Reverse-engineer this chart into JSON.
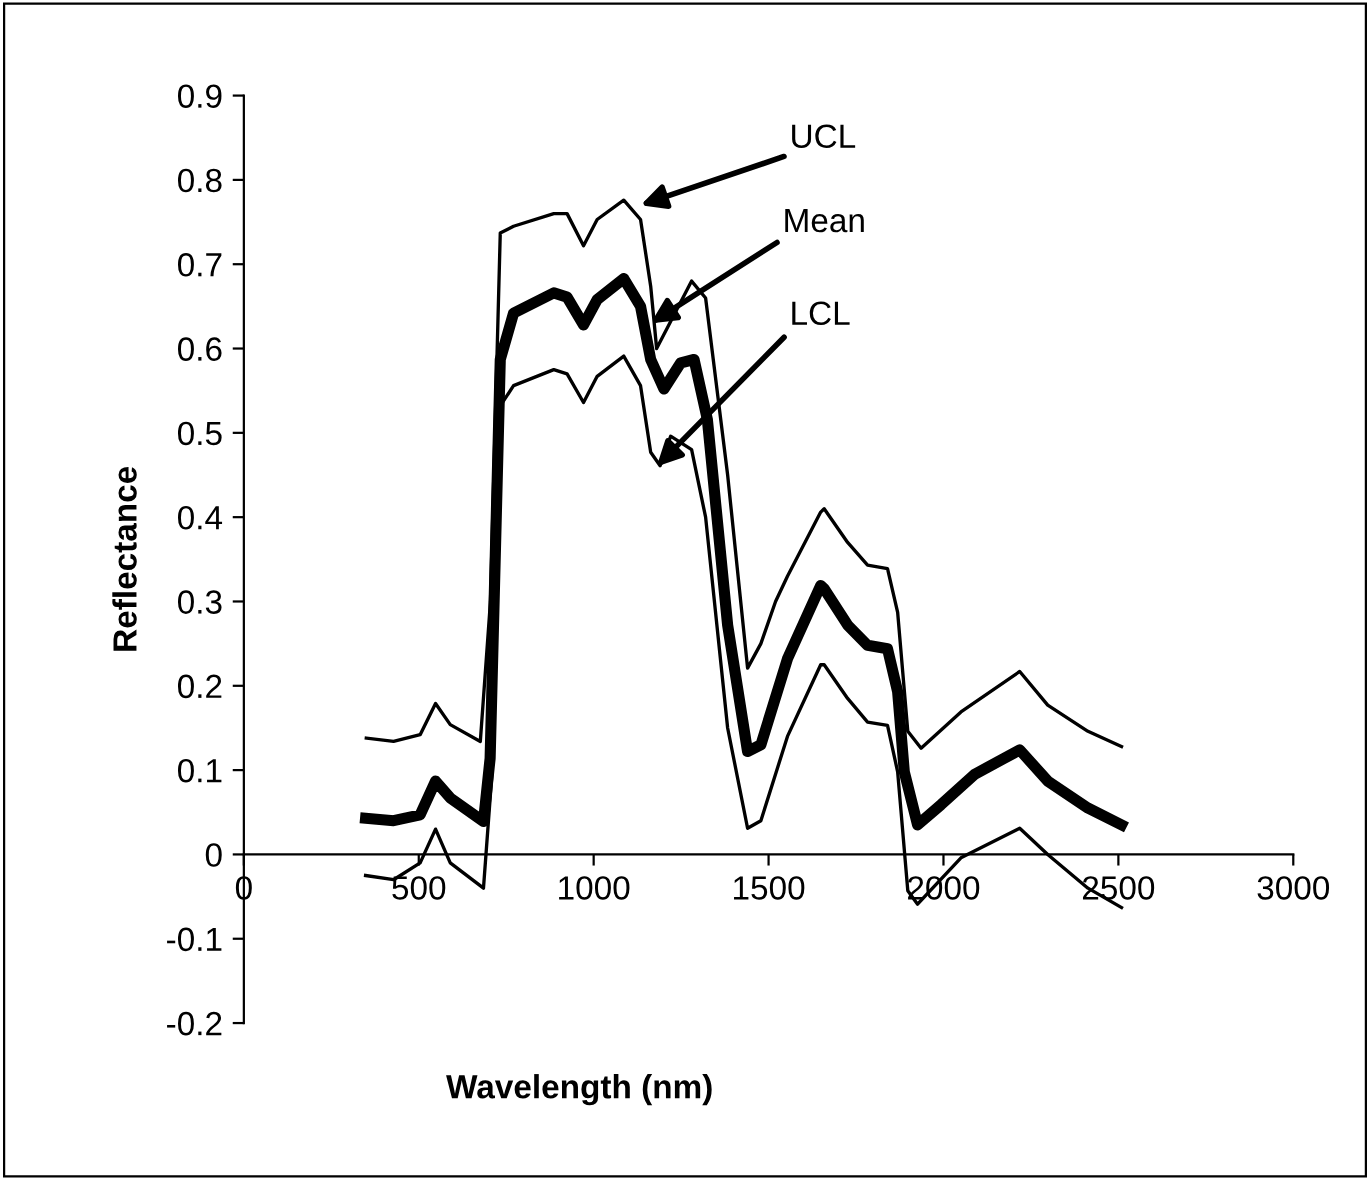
{
  "chart_data": {
    "type": "line",
    "xlabel": "Wavelength (nm)",
    "ylabel": "Reflectance",
    "xlim": [
      0,
      3000
    ],
    "xticks": [
      0,
      500,
      1000,
      1500,
      2000,
      2500,
      3000
    ],
    "ylim": [
      -0.2,
      0.9
    ],
    "yticks": [
      -0.2,
      -0.1,
      0,
      0.1,
      0.2,
      0.3,
      0.4,
      0.5,
      0.6,
      0.7,
      0.8,
      0.9
    ],
    "grid": false,
    "marker": "none",
    "line_style": "solid",
    "series": [
      {
        "color": "#000000",
        "x": [
          350,
          428,
          504,
          548,
          590,
          676,
          705,
          733,
          771,
          886,
          924,
          971,
          1010,
          1086,
          1134,
          1163,
          1180,
          1230,
          1280,
          1320,
          1383,
          1440,
          1478,
          1520,
          1554,
          1649,
          1659,
          1726,
          1783,
          1840,
          1869,
          1898,
          1936,
          2050,
          2218,
          2298,
          2413,
          2509
        ],
        "values": [
          0.138,
          0.134,
          0.142,
          0.179,
          0.154,
          0.134,
          0.3,
          0.737,
          0.745,
          0.76,
          0.76,
          0.722,
          0.753,
          0.776,
          0.753,
          0.674,
          0.6,
          0.64,
          0.68,
          0.66,
          0.45,
          0.221,
          0.25,
          0.3,
          0.33,
          0.406,
          0.41,
          0.37,
          0.343,
          0.339,
          0.287,
          0.146,
          0.126,
          0.169,
          0.217,
          0.177,
          0.146,
          0.128
        ]
      },
      {
        "color": "#000000",
        "x": [
          348,
          428,
          504,
          548,
          590,
          685,
          704,
          733,
          771,
          886,
          924,
          971,
          1010,
          1086,
          1134,
          1163,
          1201,
          1249,
          1287,
          1325,
          1383,
          1440,
          1478,
          1554,
          1649,
          1659,
          1726,
          1783,
          1840,
          1869,
          1888,
          1926,
          1993,
          2089,
          2218,
          2298,
          2413,
          2509
        ],
        "values": [
          0.043,
          0.04,
          0.047,
          0.087,
          0.067,
          0.039,
          0.114,
          0.587,
          0.642,
          0.666,
          0.661,
          0.628,
          0.658,
          0.683,
          0.65,
          0.587,
          0.552,
          0.583,
          0.587,
          0.516,
          0.272,
          0.122,
          0.13,
          0.232,
          0.319,
          0.315,
          0.272,
          0.248,
          0.244,
          0.193,
          0.098,
          0.035,
          0.059,
          0.095,
          0.124,
          0.087,
          0.055,
          0.035
        ]
      },
      {
        "color": "#000000",
        "x": [
          348,
          428,
          504,
          548,
          590,
          685,
          710,
          733,
          771,
          886,
          924,
          971,
          1010,
          1086,
          1134,
          1163,
          1190,
          1220,
          1280,
          1320,
          1383,
          1440,
          1478,
          1554,
          1649,
          1659,
          1726,
          1783,
          1840,
          1869,
          1898,
          1926,
          2050,
          2218,
          2298,
          2413,
          2509
        ],
        "values": [
          -0.025,
          -0.03,
          -0.01,
          0.03,
          -0.01,
          -0.04,
          0.1,
          0.532,
          0.556,
          0.575,
          0.57,
          0.536,
          0.567,
          0.591,
          0.556,
          0.477,
          0.461,
          0.496,
          0.48,
          0.4,
          0.15,
          0.031,
          0.04,
          0.14,
          0.225,
          0.225,
          0.185,
          0.157,
          0.153,
          0.098,
          -0.043,
          -0.059,
          -0.004,
          0.031,
          0.0,
          -0.04,
          -0.063
        ]
      }
    ],
    "annotations": [
      {
        "text": "UCL",
        "x": 1134,
        "y": 0.77
      },
      {
        "text": "Mean",
        "x": 1163,
        "y": 0.63
      },
      {
        "text": "LCL",
        "x": 1180,
        "y": 0.46
      }
    ]
  }
}
